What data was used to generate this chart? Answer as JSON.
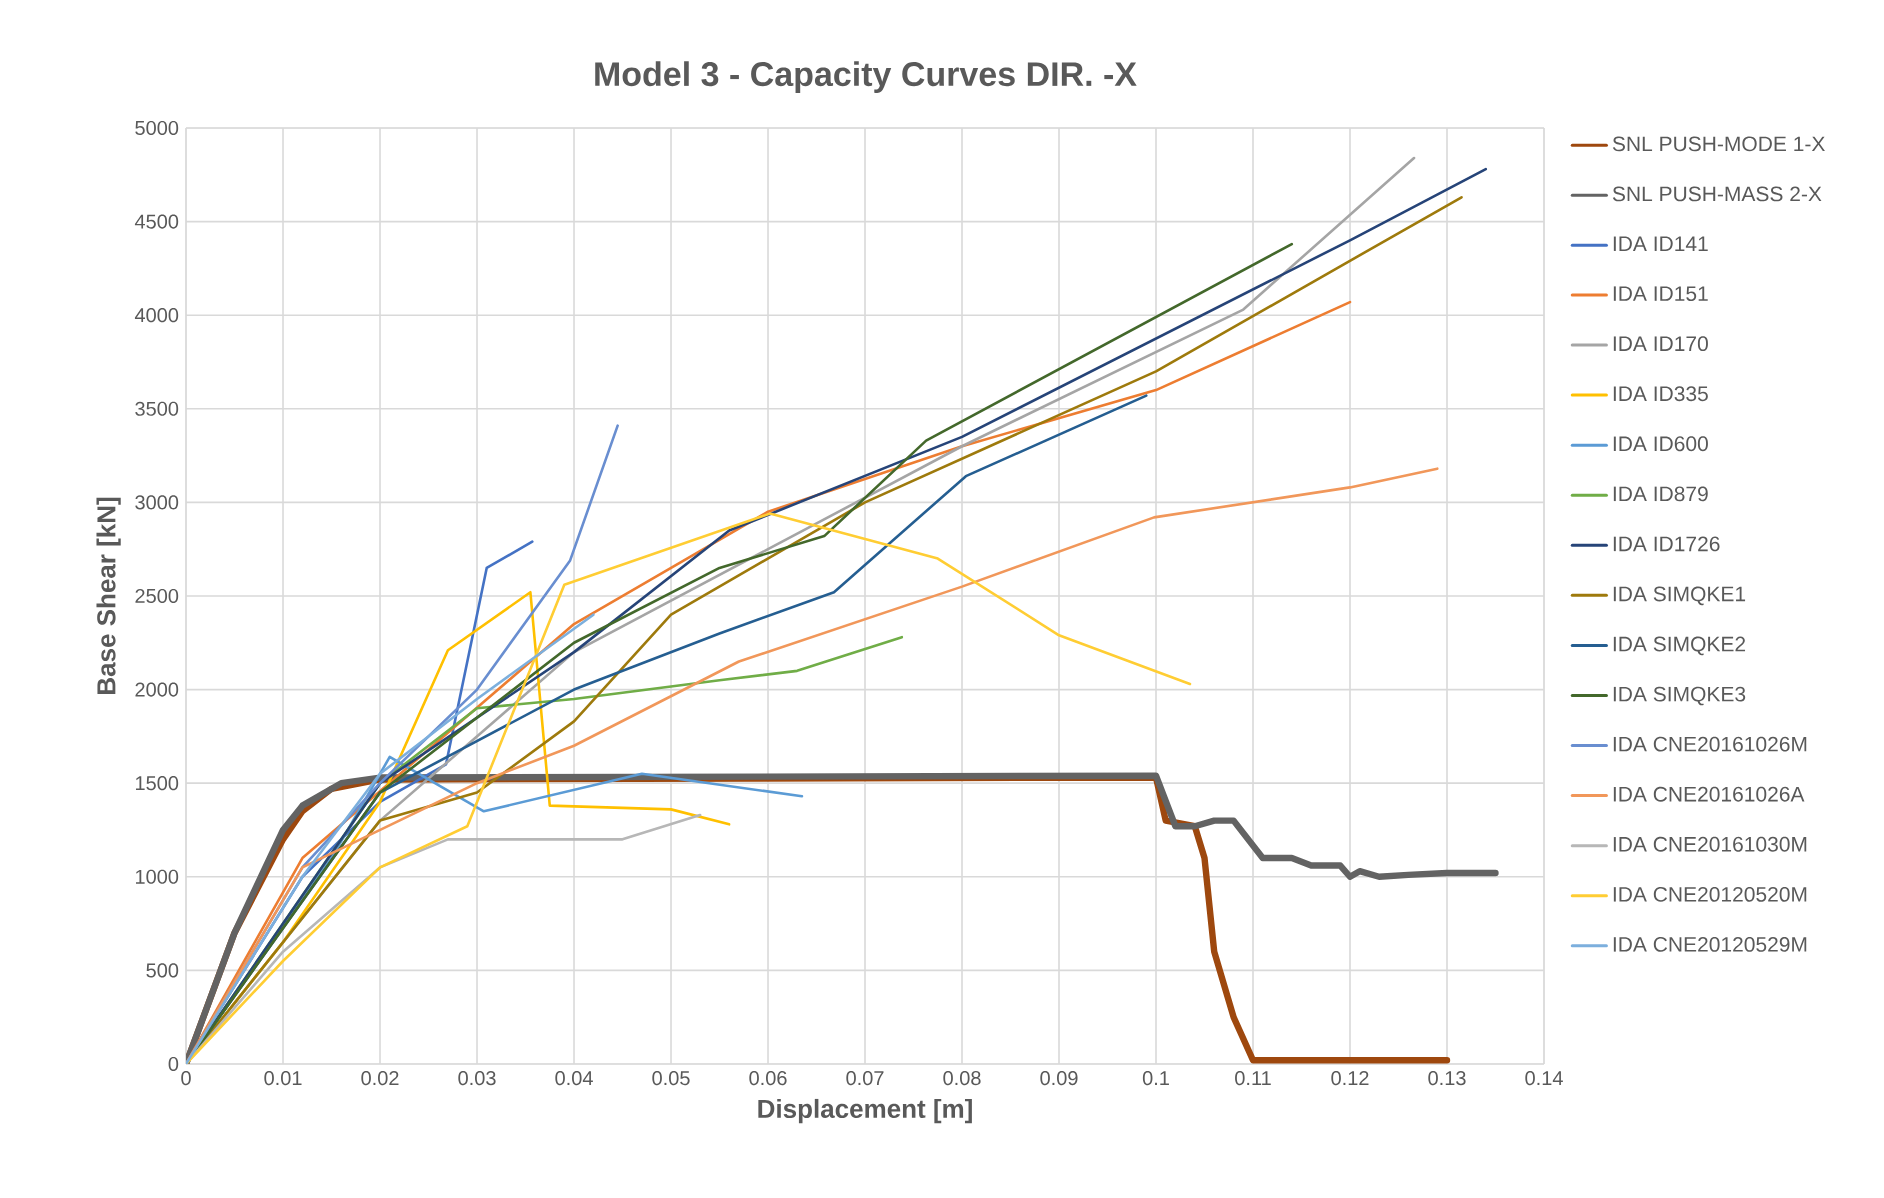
{
  "chart_data": {
    "type": "line",
    "title": "Model 3 - Capacity Curves DIR. -X",
    "xlabel": "Displacement [m]",
    "ylabel": "Base Shear [kN]",
    "xlim": [
      0,
      0.14
    ],
    "ylim": [
      0,
      5000
    ],
    "xticks": [
      0,
      0.01,
      0.02,
      0.03,
      0.04,
      0.05,
      0.06,
      0.07,
      0.08,
      0.09,
      0.1,
      0.11,
      0.12,
      0.13,
      0.14
    ],
    "yticks": [
      0,
      500,
      1000,
      1500,
      2000,
      2500,
      3000,
      3500,
      4000,
      4500,
      5000
    ],
    "grid": true,
    "legend": "right",
    "marker": "none",
    "line_style": "solid",
    "series": [
      {
        "name": "SNL PUSH-MODE 1-X",
        "color": "#9e480e",
        "x": [
          0,
          0.005,
          0.01,
          0.012,
          0.015,
          0.02,
          0.1,
          0.101,
          0.104,
          0.105,
          0.106,
          0.108,
          0.11,
          0.13
        ],
        "values": [
          0,
          700,
          1200,
          1350,
          1470,
          1520,
          1530,
          1300,
          1270,
          1100,
          600,
          250,
          20,
          20
        ]
      },
      {
        "name": "SNL PUSH-MASS 2-X",
        "color": "#636363",
        "x": [
          0,
          0.005,
          0.01,
          0.012,
          0.016,
          0.02,
          0.1,
          0.102,
          0.104,
          0.106,
          0.108,
          0.111,
          0.114,
          0.116,
          0.119,
          0.12,
          0.121,
          0.123,
          0.126,
          0.13,
          0.135
        ],
        "values": [
          0,
          700,
          1250,
          1380,
          1500,
          1530,
          1540,
          1270,
          1270,
          1300,
          1300,
          1100,
          1100,
          1060,
          1060,
          1000,
          1030,
          1000,
          1010,
          1020,
          1020
        ]
      },
      {
        "name": "IDA ID141",
        "color": "#4472c4",
        "x": [
          0,
          0.012,
          0.02,
          0.0268,
          0.031,
          0.0357
        ],
        "values": [
          0,
          1000,
          1400,
          1600,
          2650,
          2790
        ]
      },
      {
        "name": "IDA ID151",
        "color": "#ed7d31",
        "x": [
          0,
          0.012,
          0.04,
          0.06,
          0.08,
          0.1,
          0.12
        ],
        "values": [
          0,
          1100,
          2350,
          2950,
          3300,
          3600,
          4070
        ]
      },
      {
        "name": "IDA ID170",
        "color": "#a5a5a5",
        "x": [
          0,
          0.02,
          0.04,
          0.06,
          0.08,
          0.109,
          0.1266
        ],
        "values": [
          0,
          1300,
          2200,
          2750,
          3300,
          4030,
          4840
        ]
      },
      {
        "name": "IDA ID335",
        "color": "#ffc000",
        "x": [
          0,
          0.01,
          0.02,
          0.027,
          0.0355,
          0.0375,
          0.05,
          0.056
        ],
        "values": [
          0,
          650,
          1400,
          2210,
          2520,
          1380,
          1360,
          1280
        ]
      },
      {
        "name": "IDA ID600",
        "color": "#5b9bd5",
        "x": [
          0,
          0.015,
          0.021,
          0.0307,
          0.047,
          0.0635
        ],
        "values": [
          0,
          1100,
          1640,
          1350,
          1550,
          1430
        ]
      },
      {
        "name": "IDA ID879",
        "color": "#70ad47",
        "x": [
          0,
          0.02,
          0.03,
          0.04,
          0.055,
          0.063,
          0.0738
        ],
        "values": [
          0,
          1500,
          1900,
          1950,
          2050,
          2100,
          2280
        ]
      },
      {
        "name": "IDA ID1726",
        "color": "#264478",
        "x": [
          0,
          0.02,
          0.04,
          0.056,
          0.08,
          0.12,
          0.134
        ],
        "values": [
          0,
          1500,
          2200,
          2850,
          3350,
          4400,
          4780
        ]
      },
      {
        "name": "IDA SIMQKE1",
        "color": "#9e7a0c",
        "x": [
          0,
          0.02,
          0.03,
          0.04,
          0.05,
          0.07,
          0.1,
          0.1315
        ],
        "values": [
          0,
          1300,
          1450,
          1830,
          2400,
          3000,
          3700,
          4630
        ]
      },
      {
        "name": "IDA SIMQKE2",
        "color": "#255e91",
        "x": [
          0,
          0.02,
          0.04,
          0.055,
          0.0668,
          0.0804,
          0.099
        ],
        "values": [
          0,
          1450,
          2000,
          2300,
          2520,
          3140,
          3570
        ]
      },
      {
        "name": "IDA SIMQKE3",
        "color": "#43682b",
        "x": [
          0,
          0.02,
          0.04,
          0.055,
          0.0658,
          0.0763,
          0.114
        ],
        "values": [
          0,
          1450,
          2250,
          2650,
          2820,
          3330,
          4380
        ]
      },
      {
        "name": "IDA CNE20161026M",
        "color": "#698ed0",
        "x": [
          0,
          0.012,
          0.02,
          0.03,
          0.0396,
          0.0445
        ],
        "values": [
          0,
          1050,
          1500,
          2000,
          2690,
          3410
        ]
      },
      {
        "name": "IDA CNE20161026A",
        "color": "#f1975a",
        "x": [
          0,
          0.012,
          0.03,
          0.04,
          0.057,
          0.08,
          0.0998,
          0.12,
          0.129
        ],
        "values": [
          0,
          1050,
          1500,
          1700,
          2150,
          2550,
          2920,
          3080,
          3180
        ]
      },
      {
        "name": "IDA CNE20161030M",
        "color": "#b7b7b7",
        "x": [
          0,
          0.01,
          0.02,
          0.027,
          0.045,
          0.053
        ],
        "values": [
          0,
          600,
          1050,
          1200,
          1200,
          1330
        ]
      },
      {
        "name": "IDA CNE20120520M",
        "color": "#ffcd33",
        "x": [
          0,
          0.01,
          0.02,
          0.029,
          0.039,
          0.0602,
          0.0775,
          0.09,
          0.1035
        ],
        "values": [
          0,
          550,
          1050,
          1270,
          2560,
          2940,
          2700,
          2290,
          2030
        ]
      },
      {
        "name": "IDA CNE20120529M",
        "color": "#7cafdd",
        "x": [
          0,
          0.012,
          0.02,
          0.03,
          0.042
        ],
        "values": [
          0,
          1000,
          1550,
          1950,
          2400
        ]
      }
    ]
  }
}
